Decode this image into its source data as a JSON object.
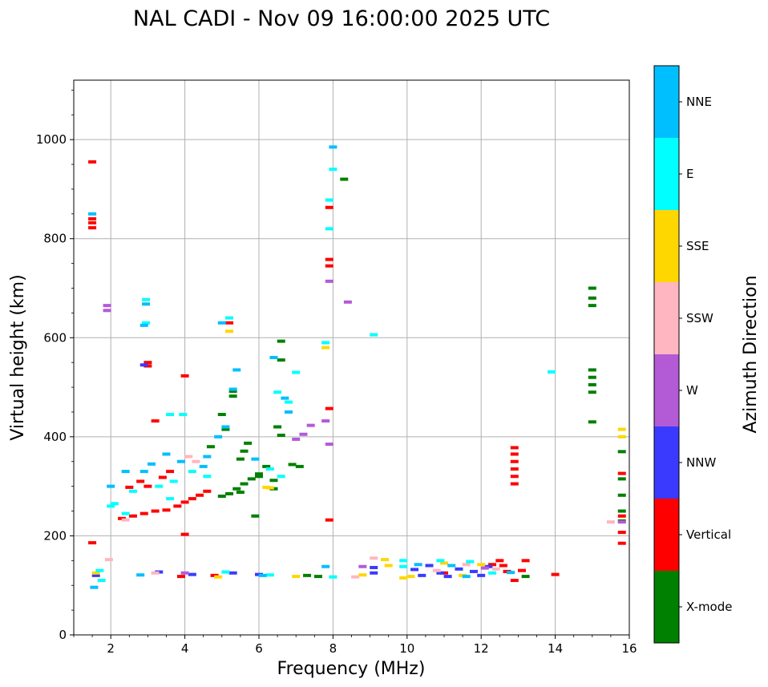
{
  "chart_data": {
    "type": "scatter",
    "title": "NAL CADI - Nov 09 16:00:00 2025 UTC",
    "xlabel": "Frequency (MHz)",
    "ylabel": "Virtual height (km)",
    "xlim": [
      1,
      16
    ],
    "ylim": [
      0,
      1120
    ],
    "xticks": [
      2,
      4,
      6,
      8,
      10,
      12,
      14,
      16
    ],
    "yticks": [
      0,
      200,
      400,
      600,
      800,
      1000
    ],
    "grid": true,
    "colorbar": {
      "title": "Azimuth Direction",
      "categories": [
        "X-mode",
        "Vertical",
        "NNW",
        "W",
        "SSW",
        "SSE",
        "E",
        "NNE"
      ],
      "colors": [
        "#008000",
        "#ff0000",
        "#3a3aff",
        "#b35ad6",
        "#ffb6c1",
        "#ffd700",
        "#00ffff",
        "#00bfff"
      ]
    },
    "series": [
      {
        "name": "X-mode",
        "points": [
          [
            6.6,
            593
          ],
          [
            6.6,
            555
          ],
          [
            6.5,
            420
          ],
          [
            6.6,
            403
          ],
          [
            6.4,
            312
          ],
          [
            5.3,
            492
          ],
          [
            5.3,
            482
          ],
          [
            5.0,
            445
          ],
          [
            5.1,
            415
          ],
          [
            4.7,
            380
          ],
          [
            6.2,
            340
          ],
          [
            6.0,
            325
          ],
          [
            5.8,
            315
          ],
          [
            5.6,
            305
          ],
          [
            5.4,
            295
          ],
          [
            5.2,
            285
          ],
          [
            5.0,
            280
          ],
          [
            5.7,
            387
          ],
          [
            5.6,
            371
          ],
          [
            5.5,
            355
          ],
          [
            6.4,
            295
          ],
          [
            6.9,
            344
          ],
          [
            7.1,
            340
          ],
          [
            15.0,
            700
          ],
          [
            15.0,
            680
          ],
          [
            15.0,
            665
          ],
          [
            15.0,
            535
          ],
          [
            15.0,
            520
          ],
          [
            15.0,
            505
          ],
          [
            15.0,
            490
          ],
          [
            15.0,
            430
          ],
          [
            15.8,
            370
          ],
          [
            15.8,
            315
          ],
          [
            15.8,
            282
          ],
          [
            15.8,
            250
          ],
          [
            15.8,
            230
          ],
          [
            8.3,
            920
          ],
          [
            7.3,
            120
          ],
          [
            7.6,
            118
          ],
          [
            13.2,
            118
          ],
          [
            5.9,
            240
          ],
          [
            6.0,
            320
          ],
          [
            5.5,
            288
          ]
        ]
      },
      {
        "name": "Vertical",
        "points": [
          [
            1.5,
            955
          ],
          [
            1.5,
            840
          ],
          [
            1.5,
            832
          ],
          [
            1.5,
            822
          ],
          [
            3.0,
            550
          ],
          [
            3.0,
            543
          ],
          [
            3.2,
            432
          ],
          [
            4.0,
            523
          ],
          [
            5.2,
            630
          ],
          [
            7.9,
            758
          ],
          [
            7.9,
            745
          ],
          [
            7.9,
            457
          ],
          [
            7.9,
            232
          ],
          [
            7.9,
            863
          ],
          [
            2.3,
            235
          ],
          [
            2.6,
            240
          ],
          [
            2.9,
            245
          ],
          [
            3.2,
            250
          ],
          [
            3.5,
            252
          ],
          [
            3.8,
            260
          ],
          [
            4.0,
            268
          ],
          [
            4.2,
            275
          ],
          [
            4.4,
            282
          ],
          [
            4.6,
            290
          ],
          [
            3.6,
            330
          ],
          [
            3.4,
            318
          ],
          [
            3.0,
            300
          ],
          [
            2.8,
            310
          ],
          [
            2.5,
            298
          ],
          [
            12.9,
            378
          ],
          [
            12.9,
            365
          ],
          [
            12.9,
            350
          ],
          [
            12.9,
            335
          ],
          [
            12.9,
            320
          ],
          [
            12.9,
            305
          ],
          [
            12.5,
            150
          ],
          [
            12.3,
            142
          ],
          [
            12.7,
            128
          ],
          [
            12.9,
            110
          ],
          [
            13.2,
            150
          ],
          [
            14.0,
            122
          ],
          [
            15.8,
            326
          ],
          [
            15.8,
            240
          ],
          [
            15.8,
            207
          ],
          [
            15.8,
            185
          ],
          [
            1.5,
            186
          ],
          [
            4.0,
            203
          ],
          [
            4.8,
            120
          ],
          [
            3.9,
            118
          ],
          [
            11.0,
            125
          ],
          [
            12.6,
            140
          ],
          [
            13.1,
            130
          ]
        ]
      },
      {
        "name": "NNW",
        "points": [
          [
            2.9,
            545
          ],
          [
            9.1,
            136
          ],
          [
            9.1,
            125
          ],
          [
            10.2,
            132
          ],
          [
            10.6,
            140
          ],
          [
            10.9,
            125
          ],
          [
            11.4,
            133
          ],
          [
            11.8,
            128
          ],
          [
            12.0,
            120
          ],
          [
            10.4,
            120
          ],
          [
            11.1,
            118
          ],
          [
            12.2,
            138
          ],
          [
            3.3,
            127
          ],
          [
            4.2,
            122
          ],
          [
            5.3,
            125
          ],
          [
            6.0,
            122
          ],
          [
            1.6,
            120
          ]
        ]
      },
      {
        "name": "W",
        "points": [
          [
            1.9,
            665
          ],
          [
            1.9,
            655
          ],
          [
            8.4,
            672
          ],
          [
            7.9,
            714
          ],
          [
            7.4,
            423
          ],
          [
            7.2,
            405
          ],
          [
            7.0,
            395
          ],
          [
            7.8,
            432
          ],
          [
            7.9,
            385
          ],
          [
            15.8,
            228
          ],
          [
            12.1,
            135
          ],
          [
            4.0,
            125
          ],
          [
            8.8,
            138
          ]
        ]
      },
      {
        "name": "SSW",
        "points": [
          [
            15.5,
            228
          ],
          [
            1.95,
            152
          ],
          [
            3.2,
            125
          ],
          [
            4.1,
            360
          ],
          [
            4.3,
            350
          ],
          [
            2.4,
            232
          ],
          [
            8.6,
            117
          ],
          [
            9.1,
            155
          ],
          [
            10.8,
            130
          ],
          [
            11.6,
            142
          ],
          [
            12.4,
            133
          ]
        ]
      },
      {
        "name": "SSE",
        "points": [
          [
            5.2,
            613
          ],
          [
            2.95,
            668
          ],
          [
            7.8,
            580
          ],
          [
            6.2,
            298
          ],
          [
            6.3,
            297
          ],
          [
            9.4,
            152
          ],
          [
            9.5,
            140
          ],
          [
            10.1,
            118
          ],
          [
            9.9,
            115
          ],
          [
            11.0,
            145
          ],
          [
            12.0,
            142
          ],
          [
            15.8,
            415
          ],
          [
            15.8,
            400
          ],
          [
            1.6,
            125
          ],
          [
            4.9,
            117
          ],
          [
            7.0,
            118
          ],
          [
            8.8,
            121
          ],
          [
            11.5,
            120
          ]
        ]
      },
      {
        "name": "E",
        "points": [
          [
            7.9,
            820
          ],
          [
            8.0,
            940
          ],
          [
            7.9,
            878
          ],
          [
            9.1,
            606
          ],
          [
            13.9,
            531
          ],
          [
            7.8,
            590
          ],
          [
            2.95,
            677
          ],
          [
            2.95,
            630
          ],
          [
            3.6,
            445
          ],
          [
            3.95,
            445
          ],
          [
            4.6,
            320
          ],
          [
            4.2,
            330
          ],
          [
            3.7,
            310
          ],
          [
            3.3,
            300
          ],
          [
            2.6,
            290
          ],
          [
            6.5,
            490
          ],
          [
            6.8,
            470
          ],
          [
            6.3,
            335
          ],
          [
            6.6,
            320
          ],
          [
            7.0,
            530
          ],
          [
            5.2,
            640
          ],
          [
            2.1,
            265
          ],
          [
            2.0,
            260
          ],
          [
            2.4,
            245
          ],
          [
            3.6,
            275
          ],
          [
            9.9,
            150
          ],
          [
            9.9,
            138
          ],
          [
            10.9,
            150
          ],
          [
            11.7,
            148
          ],
          [
            12.3,
            125
          ],
          [
            1.7,
            130
          ],
          [
            1.75,
            110
          ],
          [
            5.1,
            127
          ],
          [
            6.3,
            121
          ],
          [
            8.0,
            117
          ]
        ]
      },
      {
        "name": "NNE",
        "points": [
          [
            8.0,
            985
          ],
          [
            1.5,
            850
          ],
          [
            2.95,
            668
          ],
          [
            2.9,
            625
          ],
          [
            5.0,
            630
          ],
          [
            5.3,
            496
          ],
          [
            5.4,
            535
          ],
          [
            6.4,
            560
          ],
          [
            6.7,
            478
          ],
          [
            6.8,
            450
          ],
          [
            5.1,
            420
          ],
          [
            4.9,
            400
          ],
          [
            4.6,
            360
          ],
          [
            3.9,
            350
          ],
          [
            3.5,
            365
          ],
          [
            3.1,
            345
          ],
          [
            2.4,
            330
          ],
          [
            2.0,
            300
          ],
          [
            2.9,
            330
          ],
          [
            5.9,
            355
          ],
          [
            4.5,
            340
          ],
          [
            7.8,
            138
          ],
          [
            10.3,
            142
          ],
          [
            11.2,
            140
          ],
          [
            11.6,
            118
          ],
          [
            12.8,
            126
          ],
          [
            6.1,
            120
          ],
          [
            2.8,
            121
          ],
          [
            1.55,
            96
          ]
        ]
      }
    ]
  }
}
